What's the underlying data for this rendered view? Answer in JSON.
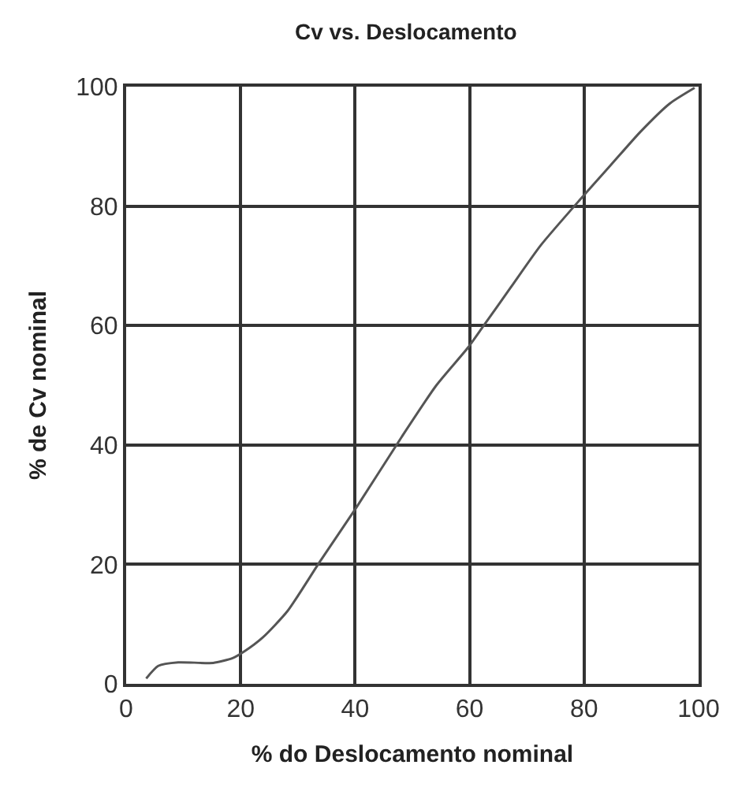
{
  "chart_data": {
    "type": "line",
    "title": "Cv vs. Deslocamento",
    "xlabel": "% do Deslocamento nominal",
    "ylabel": "% de Cv nominal",
    "series": [
      {
        "color": "#555555",
        "x": [
          3.5,
          5.6,
          9.1,
          15.2,
          18.6,
          20.6,
          23.9,
          28.2,
          33.8,
          40.2,
          48.1,
          54.2,
          59.8,
          62.4,
          67.2,
          72.4,
          79.4,
          84.6,
          89.8,
          95,
          99.3
        ],
        "values": [
          0.9,
          3.0,
          3.6,
          3.5,
          4.3,
          5.4,
          7.8,
          12.2,
          20.4,
          29.5,
          41.3,
          50,
          56.4,
          59.9,
          66.4,
          73.4,
          81.2,
          86.8,
          92.4,
          97.2,
          99.8
        ]
      }
    ],
    "xlim": [
      0,
      100
    ],
    "ylim": [
      0,
      100
    ],
    "xticks": [
      0,
      20,
      40,
      60,
      80,
      100
    ],
    "yticks": [
      0,
      20,
      40,
      60,
      80,
      100
    ],
    "grid": true,
    "marker": "none",
    "line_style": "solid",
    "legend": false
  }
}
